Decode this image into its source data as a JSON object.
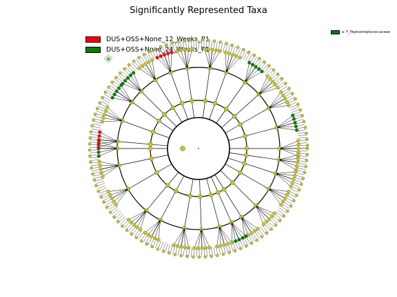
{
  "chart_data": {
    "type": "cladogram",
    "title": "Significantly Represented Taxa",
    "legend": [
      {
        "name": "DUS+OSS+None_12_Weeks_P1",
        "color": "#ff0000"
      },
      {
        "name": "DUS+OSS+None_24_Weeks_P1",
        "color": "#008000"
      }
    ],
    "side_legend": [
      {
        "label": "a: F_Peptostreptococcaceae",
        "color": "#008000"
      }
    ],
    "node_color": "#c8c818",
    "ring_levels": 6,
    "branches": [
      {
        "angle": 0,
        "group": "none"
      },
      {
        "angle": 8,
        "group": "none"
      },
      {
        "angle": 18,
        "group": "none"
      },
      {
        "angle": 30,
        "group": "none"
      },
      {
        "angle": 45,
        "group": "none"
      },
      {
        "angle": 58,
        "group": "none"
      },
      {
        "angle": 66,
        "group": "24_Weeks"
      },
      {
        "angle": 75,
        "group": "none"
      },
      {
        "angle": 88,
        "group": "none"
      },
      {
        "angle": 100,
        "group": "none"
      },
      {
        "angle": 118,
        "group": "none"
      },
      {
        "angle": 130,
        "group": "none"
      },
      {
        "angle": 150,
        "group": "none"
      },
      {
        "angle": 168,
        "group": "none"
      },
      {
        "angle": 180,
        "group": "24_Weeks"
      },
      {
        "angle": 185,
        "group": "12_Weeks"
      },
      {
        "angle": 200,
        "group": "none"
      },
      {
        "angle": 215,
        "group": "24_Weeks"
      },
      {
        "angle": 225,
        "group": "24_Weeks"
      },
      {
        "angle": 238,
        "group": "none"
      },
      {
        "angle": 250,
        "group": "12_Weeks"
      },
      {
        "angle": 262,
        "group": "none"
      },
      {
        "angle": 278,
        "group": "none"
      },
      {
        "angle": 290,
        "group": "none"
      },
      {
        "angle": 305,
        "group": "24_Weeks"
      },
      {
        "angle": 318,
        "group": "none"
      },
      {
        "angle": 330,
        "group": "none"
      },
      {
        "angle": 345,
        "group": "24_Weeks"
      }
    ],
    "clade_labels": [
      {
        "label": "a",
        "angle": 225
      }
    ]
  }
}
